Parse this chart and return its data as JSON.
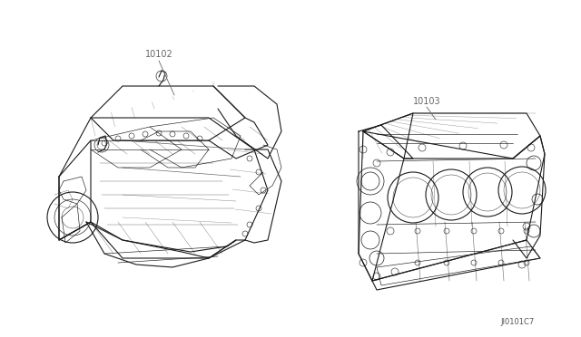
{
  "background_color": "#ffffff",
  "fig_width": 6.4,
  "fig_height": 3.72,
  "dpi": 100,
  "label_10102": "10102",
  "label_10103": "10103",
  "label_diagram_id": "JI0101C7",
  "label_color": "#666666",
  "label_fontsize": 7,
  "diagram_id_fontsize": 6,
  "line_color": "#1a1a1a",
  "lw_main": 0.8,
  "lw_thin": 0.45,
  "lw_detail": 0.3
}
